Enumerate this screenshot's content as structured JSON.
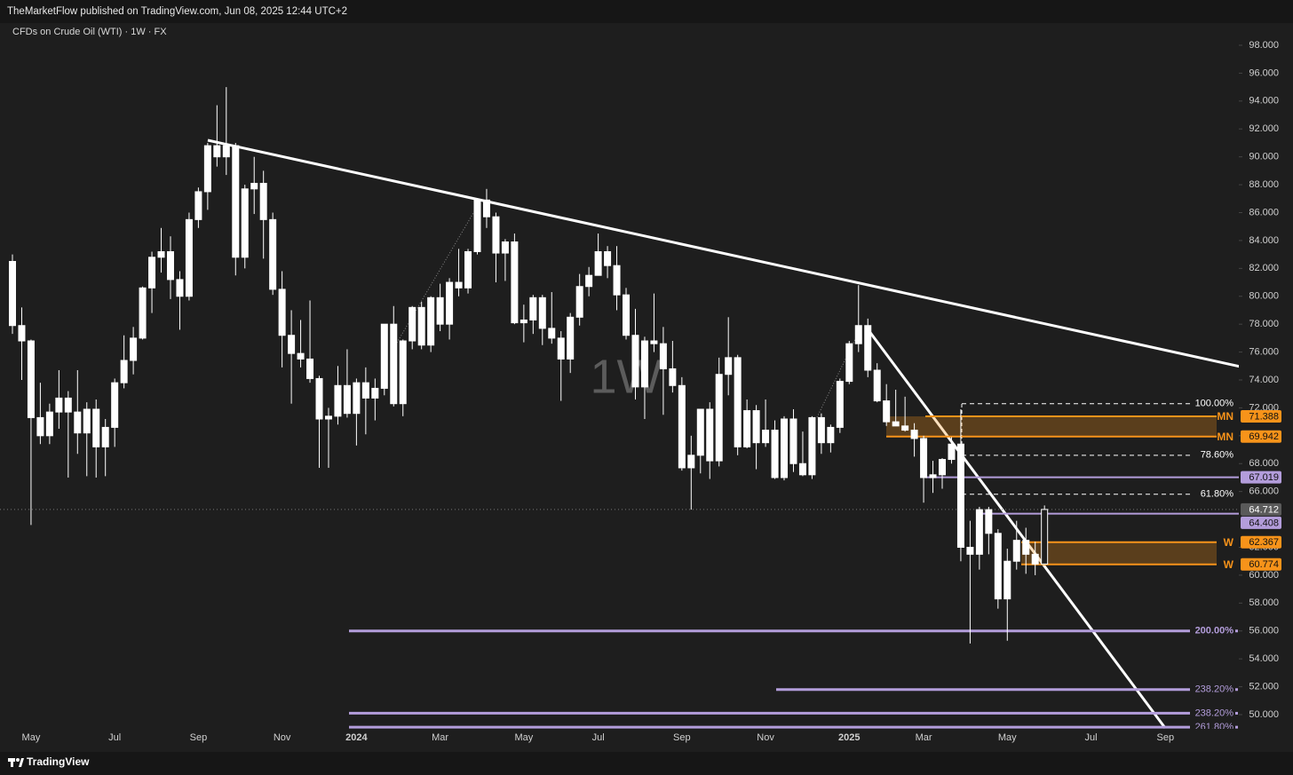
{
  "header": {
    "published": "TheMarketFlow published on TradingView.com, Jun 08, 2025 12:44 UTC+2",
    "brand": "TradingView"
  },
  "chart_data": {
    "type": "candlestick",
    "title": "CFDs on Crude Oil (WTI) · 1W · FX",
    "watermark": "1W",
    "color": "#ffffff",
    "categories": [
      null,
      null,
      "May",
      null,
      null,
      null,
      null,
      null,
      null,
      null,
      null,
      "Jul",
      null,
      null,
      null,
      null,
      null,
      null,
      null,
      null,
      "Sep",
      null,
      null,
      null,
      null,
      null,
      null,
      null,
      null,
      "Nov",
      null,
      null,
      null,
      null,
      null,
      null,
      null,
      "2024",
      null,
      null,
      null,
      null,
      null,
      null,
      null,
      null,
      "Mar",
      null,
      null,
      null,
      null,
      null,
      null,
      null,
      null,
      "May",
      null,
      null,
      null,
      null,
      null,
      null,
      null,
      "Jul",
      null,
      null,
      null,
      null,
      null,
      null,
      null,
      null,
      "Sep",
      null,
      null,
      null,
      null,
      null,
      null,
      null,
      null,
      "Nov",
      null,
      null,
      null,
      null,
      null,
      null,
      null,
      null,
      "2025",
      null,
      null,
      null,
      null,
      null,
      null,
      null,
      "Mar",
      null,
      null,
      null,
      null,
      null,
      null,
      null,
      null,
      "May",
      null,
      null,
      null,
      null,
      null,
      null,
      null,
      null,
      "Jul",
      null,
      null,
      null,
      null,
      null,
      null,
      null,
      "Sep",
      null
    ],
    "bold_categories": [
      "2024",
      "2025"
    ],
    "open": [
      82.5,
      77.9,
      76.8,
      71.3,
      70.0,
      71.7,
      72.7,
      71.7,
      70.2,
      71.9,
      69.2,
      70.6,
      73.8,
      75.4,
      77.0,
      80.6,
      82.8,
      83.2,
      81.2,
      80.0,
      85.5,
      87.5,
      90.8,
      90.0,
      90.8,
      82.8,
      87.7,
      88.1,
      85.5,
      80.5,
      77.2,
      75.9,
      75.5,
      74.1,
      71.2,
      71.4,
      73.6,
      71.6,
      73.8,
      72.7,
      73.4,
      78.0,
      72.3,
      76.8,
      79.2,
      76.5,
      79.9,
      78.0,
      81.0,
      80.6,
      83.2,
      86.9,
      85.7,
      83.1,
      83.9,
      78.1,
      78.3,
      79.9,
      77.7,
      77.0,
      75.5,
      78.5,
      80.7,
      81.5,
      83.2,
      82.2,
      80.1,
      77.2,
      73.5,
      76.8,
      76.6,
      74.8,
      73.6,
      67.7,
      68.6,
      71.9,
      68.2,
      74.4,
      75.6,
      69.2,
      71.8,
      69.5,
      70.4,
      67.0,
      71.2,
      68.0,
      67.2,
      71.3,
      69.5,
      70.6,
      73.9,
      76.6,
      77.9,
      74.7,
      72.5,
      71.0,
      70.7,
      70.4,
      69.8,
      67.0,
      67.2,
      68.3,
      69.4,
      62.0,
      61.5,
      64.7,
      63.0,
      58.3,
      61.0,
      62.5,
      61.5,
      60.8,
      null,
      null,
      null,
      null,
      null,
      null,
      null,
      null,
      null,
      null,
      null,
      null,
      null,
      null
    ],
    "high": [
      83.0,
      79.2,
      76.9,
      73.8,
      72.3,
      74.7,
      73.2,
      74.7,
      72.4,
      72.6,
      71.2,
      74.1,
      77.2,
      77.8,
      80.7,
      83.2,
      84.9,
      84.3,
      81.8,
      86.0,
      87.8,
      91.0,
      93.7,
      95.0,
      91.0,
      88.0,
      90.0,
      89.0,
      86.0,
      81.8,
      79.0,
      78.3,
      79.7,
      74.3,
      72.0,
      75.0,
      76.2,
      74.1,
      74.9,
      74.1,
      78.0,
      79.3,
      76.9,
      79.3,
      79.6,
      80.0,
      80.9,
      81.3,
      83.4,
      83.4,
      87.0,
      87.7,
      86.0,
      84.1,
      84.5,
      79.4,
      80.1,
      80.1,
      80.3,
      77.5,
      78.8,
      81.6,
      82.1,
      84.5,
      83.6,
      83.6,
      80.6,
      79.1,
      77.1,
      80.2,
      77.8,
      76.8,
      74.2,
      70.0,
      71.9,
      72.4,
      75.6,
      78.5,
      75.8,
      72.6,
      72.2,
      72.6,
      71.1,
      71.4,
      71.9,
      70.3,
      71.4,
      71.6,
      70.8,
      74.1,
      76.8,
      80.8,
      78.4,
      75.2,
      73.7,
      73.3,
      72.8,
      70.9,
      70.0,
      68.2,
      68.4,
      69.9,
      71.9,
      63.9,
      64.9,
      64.9,
      63.3,
      61.9,
      63.9,
      63.4,
      62.4,
      65.0,
      null,
      null,
      null,
      null,
      null,
      null,
      null,
      null,
      null,
      null,
      null,
      null,
      null,
      null
    ],
    "low": [
      77.3,
      74.0,
      63.6,
      69.4,
      69.4,
      70.5,
      67.0,
      68.7,
      67.1,
      67.0,
      67.1,
      69.2,
      73.4,
      74.4,
      76.9,
      78.8,
      81.7,
      79.8,
      77.6,
      79.7,
      84.9,
      86.2,
      89.3,
      88.7,
      81.5,
      82.0,
      85.9,
      82.7,
      80.1,
      74.9,
      72.3,
      74.9,
      73.8,
      67.7,
      67.7,
      70.8,
      71.3,
      69.3,
      70.1,
      71.1,
      72.9,
      72.1,
      71.4,
      76.2,
      76.2,
      76.0,
      77.5,
      76.9,
      80.0,
      80.2,
      83.0,
      84.9,
      81.0,
      81.1,
      78.0,
      76.7,
      77.3,
      76.5,
      76.6,
      72.5,
      74.5,
      77.9,
      80.0,
      81.5,
      81.3,
      79.0,
      76.9,
      72.6,
      71.2,
      76.0,
      71.5,
      73.1,
      67.5,
      64.7,
      67.3,
      66.9,
      67.8,
      72.9,
      68.6,
      69.1,
      67.6,
      69.2,
      66.9,
      66.8,
      67.4,
      67.1,
      66.9,
      68.7,
      68.8,
      70.2,
      73.7,
      76.0,
      74.2,
      72.4,
      70.7,
      70.8,
      70.3,
      68.5,
      65.2,
      65.9,
      66.2,
      68.0,
      61.0,
      55.1,
      60.4,
      61.5,
      57.6,
      55.3,
      60.4,
      60.1,
      60.0,
      60.8,
      null,
      null,
      null,
      null,
      null,
      null,
      null,
      null,
      null,
      null,
      null,
      null,
      null,
      null
    ],
    "close": [
      77.9,
      76.8,
      71.3,
      70.0,
      71.7,
      72.7,
      71.7,
      70.2,
      71.9,
      69.2,
      70.6,
      73.8,
      75.4,
      77.0,
      80.6,
      82.8,
      83.2,
      81.2,
      80.0,
      85.5,
      87.5,
      90.8,
      90.0,
      90.8,
      82.8,
      87.7,
      88.1,
      85.5,
      80.5,
      77.2,
      75.9,
      75.5,
      74.1,
      71.2,
      71.4,
      73.6,
      71.6,
      73.8,
      72.7,
      73.4,
      78.0,
      72.3,
      76.8,
      79.2,
      76.5,
      79.9,
      78.0,
      81.0,
      80.6,
      83.2,
      86.9,
      85.7,
      83.1,
      83.9,
      78.1,
      78.3,
      79.9,
      77.7,
      77.0,
      75.5,
      78.5,
      80.7,
      81.5,
      83.2,
      82.2,
      80.1,
      77.2,
      73.5,
      76.8,
      76.6,
      74.8,
      73.6,
      67.7,
      68.6,
      71.9,
      68.2,
      74.4,
      75.6,
      69.2,
      71.8,
      69.5,
      70.4,
      67.0,
      71.2,
      68.0,
      67.2,
      71.3,
      69.5,
      70.6,
      73.9,
      76.6,
      77.9,
      74.7,
      72.5,
      71.0,
      70.7,
      70.4,
      69.8,
      67.0,
      67.2,
      68.3,
      69.4,
      62.0,
      61.5,
      64.7,
      63.0,
      58.3,
      61.0,
      62.5,
      61.5,
      60.8,
      64.712,
      null,
      null,
      null,
      null,
      null,
      null,
      null,
      null,
      null,
      null,
      null,
      null,
      null,
      null
    ],
    "ylim": [
      50,
      98
    ],
    "yticks": [
      {
        "value": 50,
        "label": "50.000"
      },
      {
        "value": 52,
        "label": "52.000"
      },
      {
        "value": 54,
        "label": "54.000"
      },
      {
        "value": 56,
        "label": "56.000"
      },
      {
        "value": 58,
        "label": "58.000"
      },
      {
        "value": 60,
        "label": "60.000"
      },
      {
        "value": 62,
        "label": "62.000"
      },
      {
        "value": 66,
        "label": "66.000"
      },
      {
        "value": 68,
        "label": "68.000"
      },
      {
        "value": 70,
        "label": "70.000"
      },
      {
        "value": 72,
        "label": "72.000"
      },
      {
        "value": 74,
        "label": "74.000"
      },
      {
        "value": 76,
        "label": "76.000"
      },
      {
        "value": 78,
        "label": "78.000"
      },
      {
        "value": 80,
        "label": "80.000"
      },
      {
        "value": 82,
        "label": "82.000"
      },
      {
        "value": 84,
        "label": "84.000"
      },
      {
        "value": 86,
        "label": "86.000"
      },
      {
        "value": 88,
        "label": "88.000"
      },
      {
        "value": 90,
        "label": "90.000"
      },
      {
        "value": 92,
        "label": "92.000"
      },
      {
        "value": 94,
        "label": "94.000"
      },
      {
        "value": 96,
        "label": "96.000"
      },
      {
        "value": 98,
        "label": "98.000"
      }
    ],
    "grid": false,
    "last_price": {
      "value": 64.712,
      "label": "64.712",
      "color": "#5a5a5a"
    },
    "levels": [
      {
        "tag": "MN",
        "value": 71.388,
        "label": "71.388",
        "color": "#f7931a"
      },
      {
        "tag": "MN",
        "value": 69.942,
        "label": "69.942",
        "color": "#f7931a"
      },
      {
        "value": 67.019,
        "label": "67.019",
        "color": "#b39ddb"
      },
      {
        "value": 64.408,
        "label": "64.408",
        "color": "#b39ddb"
      },
      {
        "tag": "W",
        "value": 62.367,
        "label": "62.367",
        "color": "#f7931a"
      },
      {
        "tag": "W",
        "value": 60.774,
        "label": "60.774",
        "color": "#f7931a"
      }
    ],
    "fib_levels": [
      {
        "label": "100.00%",
        "price": 72.3,
        "color": "#ffffff",
        "dashed": true
      },
      {
        "label": "78.60%",
        "price": 68.6,
        "color": "#ffffff",
        "dashed": true
      },
      {
        "label": "61.80%",
        "price": 65.8,
        "color": "#ffffff",
        "dashed": true
      },
      {
        "label": "200.00%",
        "price": 56.0,
        "color": "#b39ddb",
        "dashed": false
      },
      {
        "label": "238.20%",
        "price": 51.8,
        "color": "#b39ddb",
        "dashed": false
      },
      {
        "label": "238.20%",
        "price": 50.1,
        "color": "#b39ddb",
        "dashed": false
      },
      {
        "label": "261.80%",
        "price": 49.1,
        "color": "#b39ddb",
        "dashed": false
      }
    ]
  }
}
